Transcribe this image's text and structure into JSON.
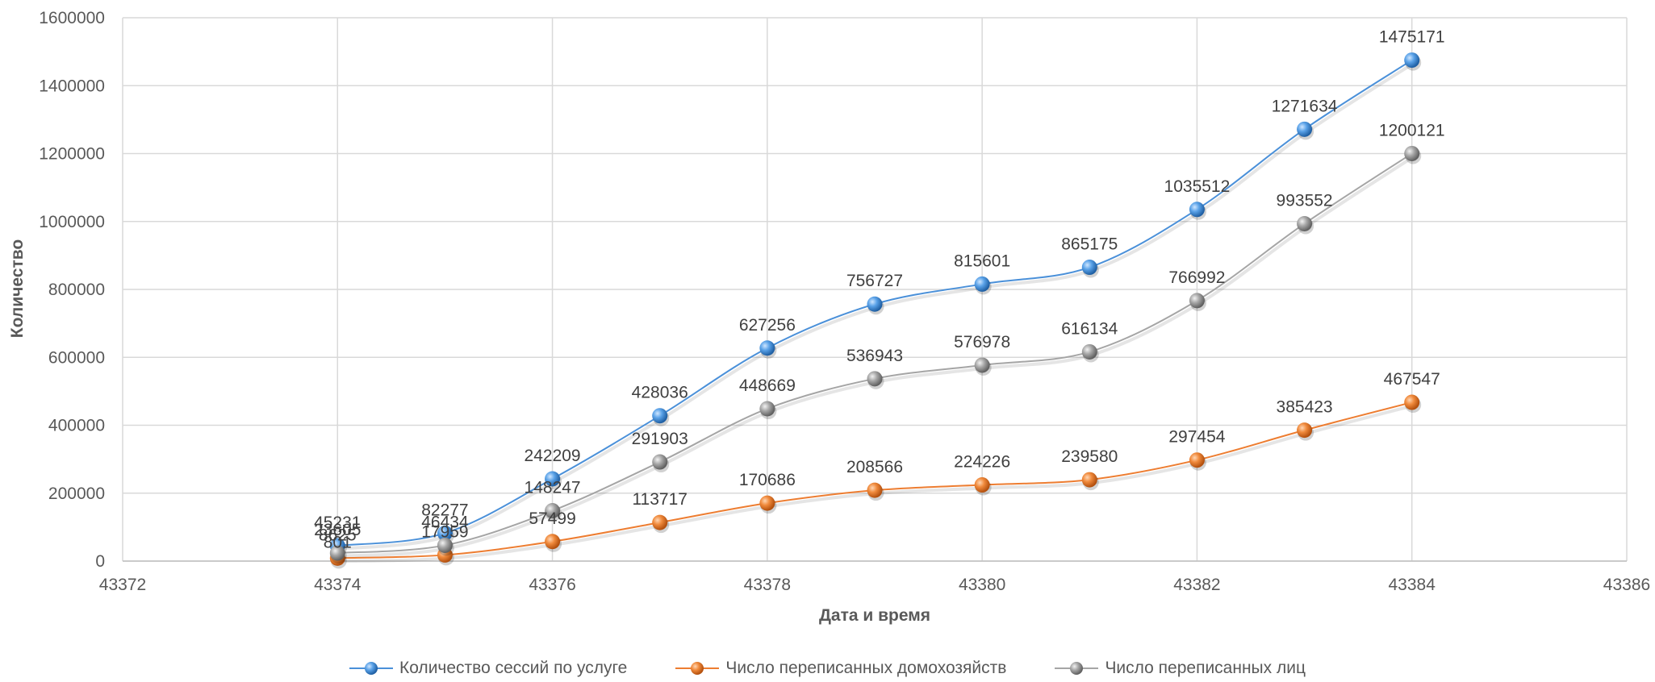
{
  "chart_data": {
    "type": "line",
    "title": "",
    "xlabel": "Дата и время",
    "ylabel": "Количество",
    "xlim": [
      43372,
      43386
    ],
    "ylim": [
      0,
      1600000
    ],
    "x_ticks": [
      "43372",
      "43374",
      "43376",
      "43378",
      "43380",
      "43382",
      "43384",
      "43386"
    ],
    "y_ticks": [
      "0",
      "200000",
      "400000",
      "600000",
      "800000",
      "1000000",
      "1200000",
      "1400000",
      "1600000"
    ],
    "grid": true,
    "legend_position": "bottom",
    "x": [
      43374,
      43375,
      43376,
      43377,
      43378,
      43379,
      43380,
      43381,
      43382,
      43383,
      43384
    ],
    "series": [
      {
        "name": "Количество сессий по услуге",
        "color": "#4a90d9",
        "values": [
          45231,
          82277,
          242209,
          428036,
          627256,
          756727,
          815601,
          865175,
          1035512,
          1271634,
          1475171
        ]
      },
      {
        "name": "Число переписанных домохозяйств",
        "color": "#ed7d31",
        "values": [
          8625,
          17959,
          57499,
          113717,
          170686,
          208566,
          224226,
          239580,
          297454,
          385423,
          467547
        ]
      },
      {
        "name": "Число переписанных лиц",
        "color": "#a5a5a5",
        "values": [
          23605,
          46434,
          148247,
          291903,
          448669,
          536943,
          576978,
          616134,
          766992,
          993552,
          1200121
        ]
      }
    ],
    "extra_labels": [
      "801"
    ]
  }
}
